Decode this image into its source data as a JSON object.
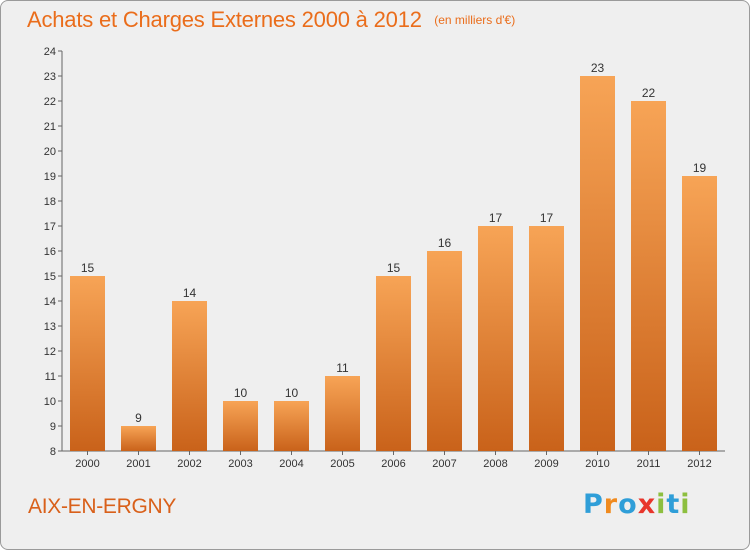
{
  "colors": {
    "accent": "#ea6d1b",
    "bar_light": "#f7a456",
    "bar_dark": "#c9621a",
    "background": "#efefef",
    "logo": [
      "#2f9ed8",
      "#f08a1e",
      "#2f9ed8",
      "#e8352b",
      "#8dbf3f",
      "#2f9ed8",
      "#8dbf3f"
    ]
  },
  "header": {
    "title": "Achats et Charges Externes 2000 à 2012",
    "subtitle": "(en milliers d'€)"
  },
  "footer": {
    "commune": "AIX-EN-ERGNY",
    "logo": "Proxiti"
  },
  "chart_data": {
    "type": "bar",
    "title": "Achats et Charges Externes 2000 à 2012",
    "subtitle": "(en milliers d'€)",
    "categories": [
      "2000",
      "2001",
      "2002",
      "2003",
      "2004",
      "2005",
      "2006",
      "2007",
      "2008",
      "2009",
      "2010",
      "2011",
      "2012"
    ],
    "values": [
      15,
      9,
      14,
      10,
      10,
      11,
      15,
      16,
      17,
      17,
      23,
      22,
      19
    ],
    "data_labels": [
      "15",
      "9",
      "14",
      "10",
      "10",
      "11",
      "15",
      "16",
      "17",
      "17",
      "23",
      "22",
      "19"
    ],
    "yticks": [
      "8",
      "9",
      "10",
      "11",
      "12",
      "13",
      "14",
      "15",
      "16",
      "17",
      "18",
      "19",
      "20",
      "21",
      "22",
      "23",
      "24"
    ],
    "ylim": [
      8,
      24
    ],
    "xlabel": "",
    "ylabel": "",
    "grid": false,
    "legend": "none"
  }
}
